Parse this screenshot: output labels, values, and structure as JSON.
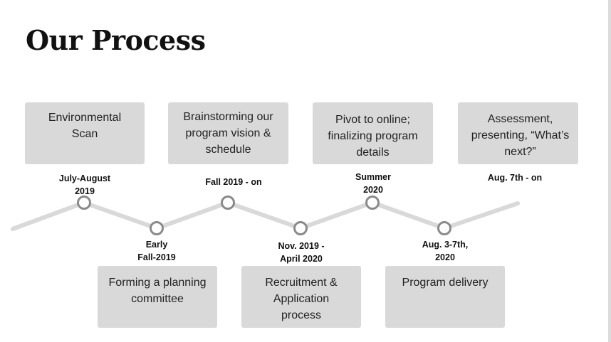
{
  "title": "Our Process",
  "steps": [
    {
      "box": "Environmental Scan",
      "date": "July-August\n2019"
    },
    {
      "box": "Forming a planning committee",
      "date": "Early\nFall-2019"
    },
    {
      "box": "Brainstorming our program vision & schedule",
      "date": "Fall 2019 - on"
    },
    {
      "box": "Recruitment & Application process",
      "date": "Nov. 2019 -\nApril 2020"
    },
    {
      "box": "Pivot to online; finalizing program details",
      "date": "Summer\n2020"
    },
    {
      "box": "Program delivery",
      "date": "Aug. 3-7th,\n2020"
    },
    {
      "box": "Assessment, presenting, “What’s next?”",
      "date": "Aug. 7th - on"
    }
  ],
  "colors": {
    "box_fill": "#d9d9d9",
    "line": "#d9d9d9",
    "node_stroke": "#8a8a8a"
  }
}
